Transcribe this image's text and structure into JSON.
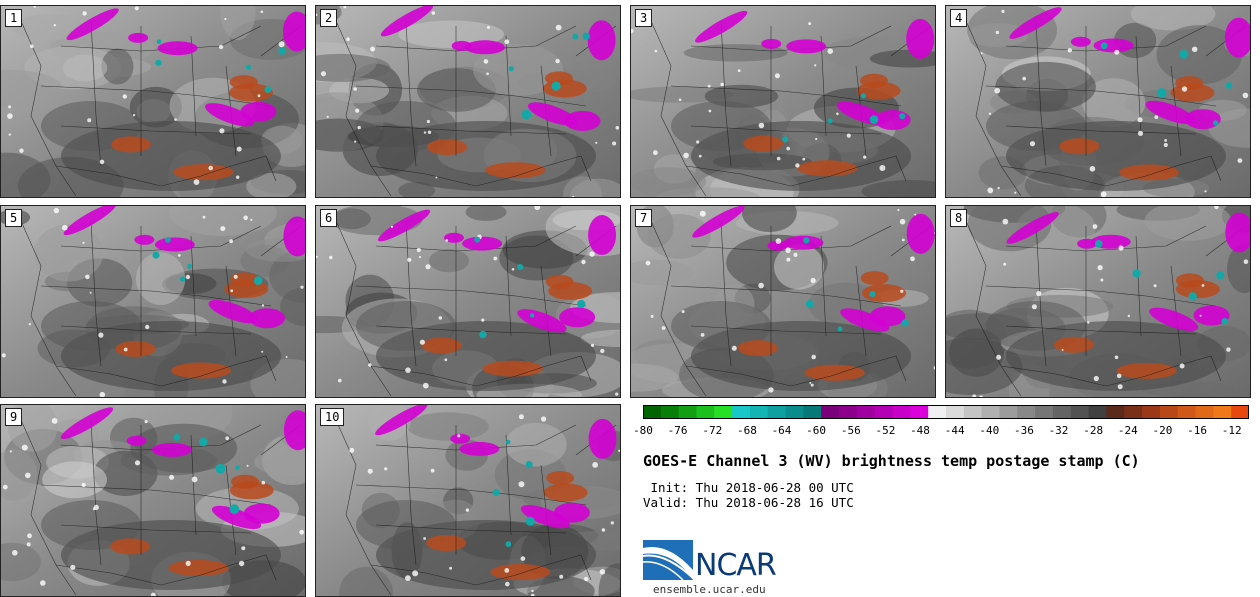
{
  "panels": [
    "1",
    "2",
    "3",
    "4",
    "5",
    "6",
    "7",
    "8",
    "9",
    "10"
  ],
  "colorbar": {
    "min": -80,
    "max": -10,
    "tick_labels": [
      "-80",
      "-76",
      "-72",
      "-68",
      "-64",
      "-60",
      "-56",
      "-52",
      "-48",
      "-44",
      "-40",
      "-36",
      "-32",
      "-28",
      "-24",
      "-20",
      "-16",
      "-12"
    ],
    "colors": [
      "#006400",
      "#097f09",
      "#12a012",
      "#1cc01c",
      "#26e026",
      "#18c8c8",
      "#12b4b4",
      "#0ea0a0",
      "#0a8c8c",
      "#067878",
      "#7a007a",
      "#8c008c",
      "#a000a0",
      "#b400b4",
      "#c800c8",
      "#dc00dc",
      "#f0f0f0",
      "#dadada",
      "#c4c4c4",
      "#b0b0b0",
      "#9c9c9c",
      "#888888",
      "#767676",
      "#646464",
      "#525252",
      "#404040",
      "#5a2a1a",
      "#7a3018",
      "#9a3818",
      "#b84818",
      "#d05818",
      "#e06818",
      "#f07818",
      "#e84810"
    ]
  },
  "title": "GOES-E Channel 3 (WV) brightness temp postage stamp (C)",
  "init": " Init: Thu 2018-06-28 00 UTC",
  "valid": "Valid: Thu 2018-06-28 16 UTC",
  "logo_text": "NCAR",
  "logo_url": "ensemble.ucar.edu"
}
